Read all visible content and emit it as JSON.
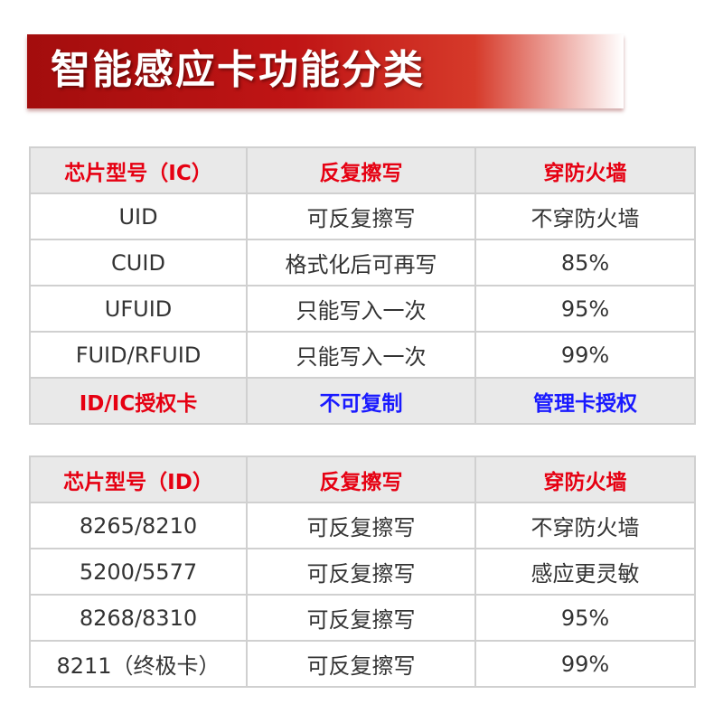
{
  "title": "智能感应卡功能分类",
  "tables": [
    {
      "header": [
        "芯片型号（IC）",
        "反复擦写",
        "穿防火墙"
      ],
      "rows": [
        [
          "UID",
          "可反复擦写",
          "不穿防火墙"
        ],
        [
          "CUID",
          "格式化后可再写",
          "85%"
        ],
        [
          "UFUID",
          "只能写入一次",
          "95%"
        ],
        [
          "FUID/RFUID",
          "只能写入一次",
          "99%"
        ]
      ],
      "footer": [
        "ID/IC授权卡",
        "不可复制",
        "管理卡授权"
      ]
    },
    {
      "header": [
        "芯片型号（ID）",
        "反复擦写",
        "穿防火墙"
      ],
      "rows": [
        [
          "8265/8210",
          "可反复擦写",
          "不穿防火墙"
        ],
        [
          "5200/5577",
          "可反复擦写",
          "感应更灵敏"
        ],
        [
          "8268/8310",
          "可反复擦写",
          "95%"
        ],
        [
          "8211（终极卡）",
          "可反复擦写",
          "99%"
        ]
      ]
    }
  ]
}
